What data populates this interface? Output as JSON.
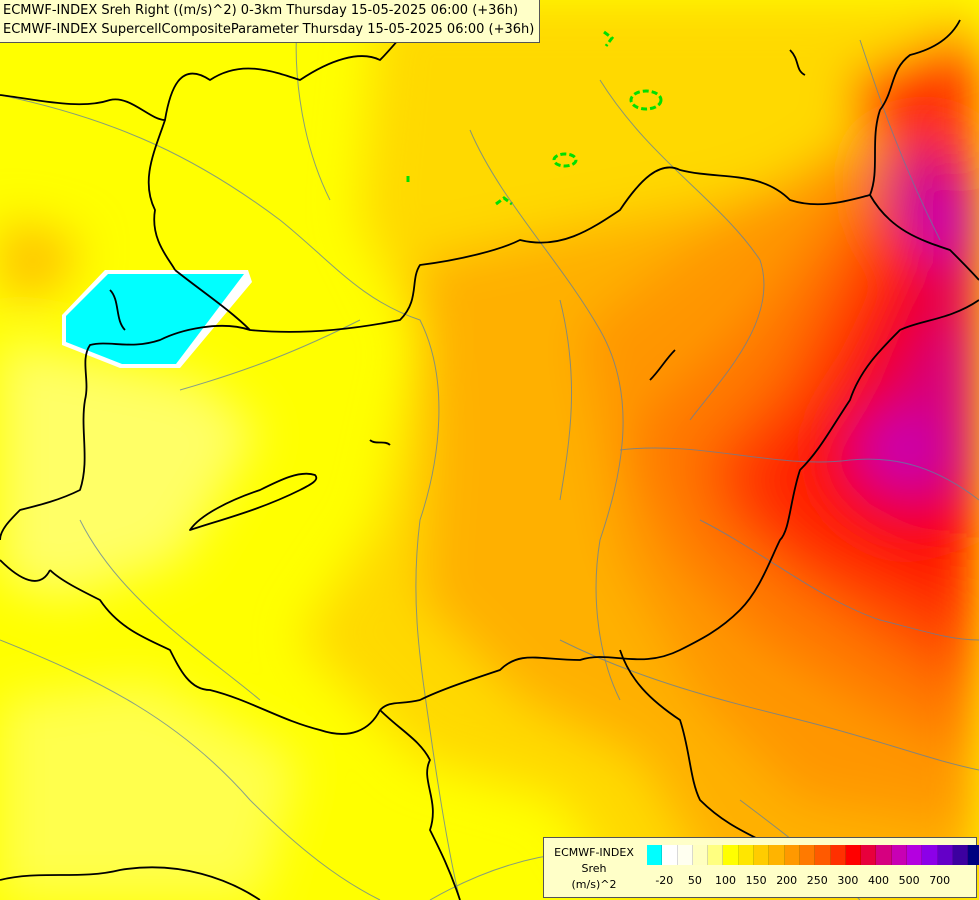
{
  "title": {
    "line1": "ECMWF-INDEX Sreh Right ((m/s)^2) 0-3km Thursday 15-05-2025 06:00 (+36h)",
    "line2": "ECMWF-INDEX SupercellCompositeParameter Thursday 15-05-2025 06:00 (+36h)"
  },
  "legend": {
    "title1": "ECMWF-INDEX",
    "title2": "Sreh",
    "unit": "(m/s)^2",
    "colors": [
      "#00ffff",
      "#ffffff",
      "#fffff0",
      "#ffffc0",
      "#ffff80",
      "#ffff00",
      "#ffe600",
      "#ffcc00",
      "#ffb400",
      "#ff9900",
      "#ff7a00",
      "#ff5a00",
      "#ff3000",
      "#ff0000",
      "#e8003c",
      "#d60080",
      "#c800b4",
      "#b400e0",
      "#8c00e8",
      "#6400c8",
      "#3c00a0",
      "#000080"
    ],
    "ticks": [
      "-20",
      "50",
      "100",
      "150",
      "200",
      "250",
      "300",
      "400",
      "500",
      "700"
    ]
  },
  "map": {
    "sea_color": "#00ffff",
    "contour_color": "#00e000",
    "border_color": "#000000",
    "river_color": "#5f7fa0"
  }
}
